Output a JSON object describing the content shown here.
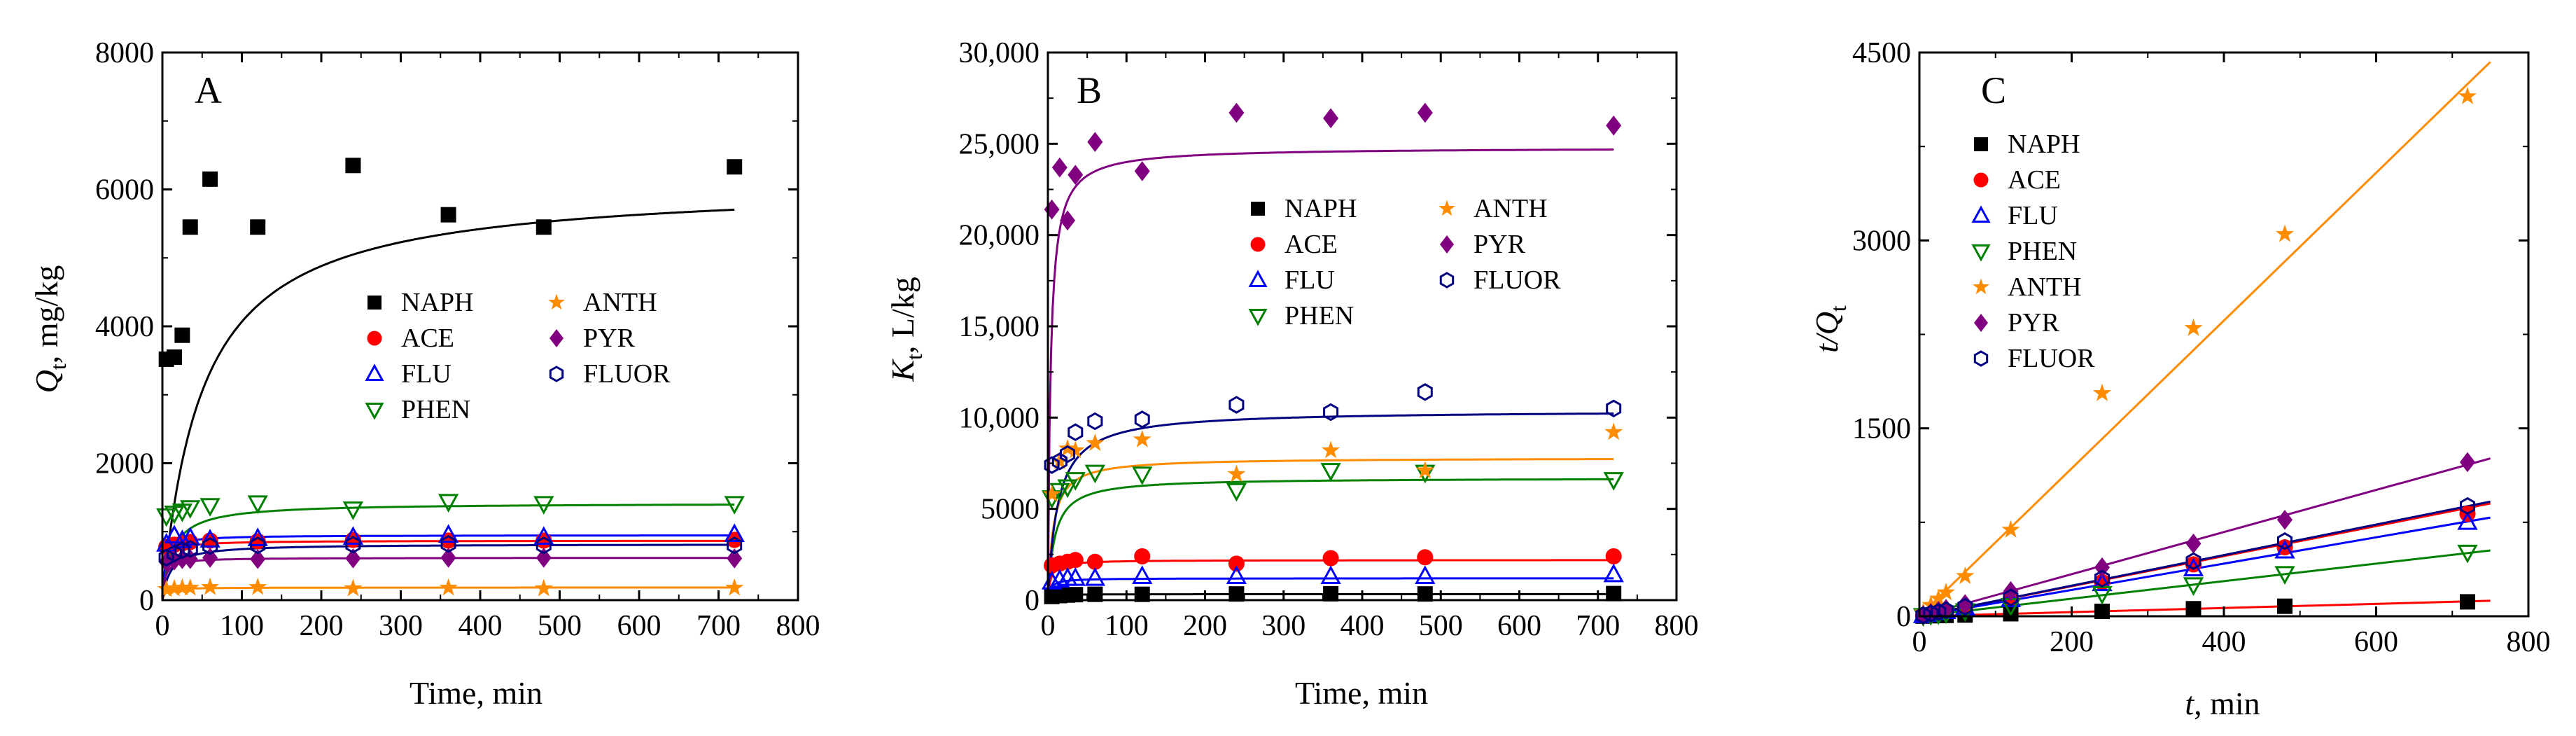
{
  "chart_data": [
    {
      "type": "scatter",
      "panel_label": "A",
      "xlabel": "Time, min",
      "ylabel_main": "Q",
      "ylabel_sub": "t",
      "ylabel_rest": ", mg/kg",
      "xlim": [
        0,
        800
      ],
      "ylim": [
        0,
        8000
      ],
      "xticks": [
        "0",
        "100",
        "200",
        "300",
        "400",
        "500",
        "600",
        "700",
        "800"
      ],
      "yticks": [
        "0",
        "2000",
        "4000",
        "6000",
        "8000"
      ],
      "legend_columns": [
        [
          "NAPH",
          "ACE",
          "FLU",
          "PHEN"
        ],
        [
          "ANTH",
          "PYR",
          "FLUOR"
        ]
      ],
      "series": [
        {
          "name": "NAPH",
          "marker": "square",
          "color": "#000000",
          "fit": 6100,
          "fitk": 0.02,
          "x": [
            5,
            15,
            25,
            35,
            60,
            120,
            240,
            360,
            480,
            720
          ],
          "y": [
            3520,
            3550,
            3870,
            5450,
            6150,
            5450,
            6350,
            5630,
            5450,
            6330
          ]
        },
        {
          "name": "ACE",
          "marker": "circle",
          "color": "#ff0000",
          "fit": 870,
          "fitk": 0.3,
          "x": [
            5,
            15,
            25,
            35,
            60,
            120,
            240,
            360,
            480,
            720
          ],
          "y": [
            780,
            810,
            830,
            850,
            870,
            860,
            880,
            870,
            870,
            880
          ]
        },
        {
          "name": "FLU",
          "marker": "triangle-up",
          "color": "#0000ff",
          "fit": 950,
          "fitk": 0.3,
          "x": [
            5,
            15,
            25,
            35,
            60,
            120,
            240,
            360,
            480,
            720
          ],
          "y": [
            820,
            940,
            870,
            910,
            880,
            900,
            920,
            950,
            920,
            960
          ]
        },
        {
          "name": "PHEN",
          "marker": "triangle-down",
          "color": "#008000",
          "fit": 1420,
          "fitk": 0.08,
          "x": [
            5,
            15,
            25,
            35,
            60,
            120,
            240,
            360,
            480,
            720
          ],
          "y": [
            1230,
            1270,
            1300,
            1350,
            1380,
            1420,
            1330,
            1440,
            1410,
            1410
          ]
        },
        {
          "name": "ANTH",
          "marker": "star",
          "color": "#ff8c00",
          "fit": 185,
          "fitk": 0.3,
          "x": [
            5,
            15,
            25,
            35,
            60,
            120,
            240,
            360,
            480,
            720
          ],
          "y": [
            160,
            170,
            180,
            180,
            190,
            190,
            170,
            180,
            170,
            180
          ]
        },
        {
          "name": "PYR",
          "marker": "diamond",
          "color": "#800080",
          "fit": 620,
          "fitk": 0.3,
          "x": [
            5,
            15,
            25,
            35,
            60,
            120,
            240,
            360,
            480,
            720
          ],
          "y": [
            560,
            580,
            600,
            600,
            620,
            600,
            610,
            620,
            620,
            610
          ]
        },
        {
          "name": "FLUOR",
          "marker": "hexagon",
          "color": "#000080",
          "fit": 820,
          "fitk": 0.1,
          "x": [
            5,
            15,
            25,
            35,
            60,
            120,
            240,
            360,
            480,
            720
          ],
          "y": [
            620,
            680,
            730,
            750,
            790,
            800,
            810,
            820,
            800,
            800
          ]
        }
      ]
    },
    {
      "type": "scatter",
      "panel_label": "B",
      "xlabel": "Time, min",
      "ylabel_main": "K",
      "ylabel_sub": "t",
      "ylabel_rest": ", L/kg",
      "xlim": [
        0,
        800
      ],
      "ylim": [
        0,
        30000
      ],
      "xticks": [
        "0",
        "100",
        "200",
        "300",
        "400",
        "500",
        "600",
        "700",
        "800"
      ],
      "yticks": [
        "0",
        "5000",
        "10,000",
        "15,000",
        "20,000",
        "25,000",
        "30,000"
      ],
      "legend_columns": [
        [
          "NAPH",
          "ACE",
          "FLU",
          "PHEN"
        ],
        [
          "ANTH",
          "PYR",
          "FLUOR"
        ]
      ],
      "series": [
        {
          "name": "NAPH",
          "marker": "square",
          "color": "#000000",
          "fit": 330,
          "fitk": 0.3,
          "x": [
            5,
            15,
            25,
            35,
            60,
            120,
            240,
            360,
            480,
            720
          ],
          "y": [
            200,
            250,
            280,
            300,
            320,
            320,
            340,
            350,
            340,
            360
          ]
        },
        {
          "name": "ACE",
          "marker": "circle",
          "color": "#ff0000",
          "fit": 2200,
          "fitk": 0.3,
          "x": [
            5,
            15,
            25,
            35,
            60,
            120,
            240,
            360,
            480,
            720
          ],
          "y": [
            1900,
            2000,
            2100,
            2200,
            2100,
            2400,
            2000,
            2300,
            2350,
            2400
          ]
        },
        {
          "name": "FLU",
          "marker": "triangle-up",
          "color": "#0000ff",
          "fit": 1200,
          "fitk": 0.3,
          "x": [
            5,
            15,
            25,
            35,
            60,
            120,
            240,
            360,
            480,
            720
          ],
          "y": [
            1000,
            1100,
            1200,
            1200,
            1200,
            1300,
            1300,
            1300,
            1300,
            1400
          ]
        },
        {
          "name": "PHEN",
          "marker": "triangle-down",
          "color": "#008000",
          "fit": 6700,
          "fitk": 0.12,
          "x": [
            5,
            15,
            25,
            35,
            60,
            120,
            240,
            360,
            480,
            720
          ],
          "y": [
            5600,
            6000,
            6200,
            6600,
            7000,
            6900,
            6000,
            7100,
            7000,
            6600
          ]
        },
        {
          "name": "ANTH",
          "marker": "star",
          "color": "#ff8c00",
          "fit": 7800,
          "fitk": 0.15,
          "x": [
            5,
            15,
            25,
            35,
            60,
            120,
            240,
            360,
            480,
            720
          ],
          "y": [
            5800,
            7600,
            8300,
            8200,
            8600,
            8800,
            6900,
            8200,
            7100,
            9200
          ]
        },
        {
          "name": "PYR",
          "marker": "diamond",
          "color": "#800080",
          "fit": 24800,
          "fitk": 0.3,
          "x": [
            5,
            15,
            25,
            35,
            60,
            120,
            240,
            360,
            480,
            720
          ],
          "y": [
            21400,
            23700,
            20800,
            23300,
            25100,
            23500,
            26700,
            26400,
            26700,
            26000
          ]
        },
        {
          "name": "FLUOR",
          "marker": "hexagon",
          "color": "#000080",
          "fit": 10400,
          "fitk": 0.08,
          "x": [
            5,
            15,
            25,
            35,
            60,
            120,
            240,
            360,
            480,
            720
          ],
          "y": [
            7400,
            7600,
            8000,
            9200,
            9800,
            9900,
            10700,
            10300,
            11400,
            10500
          ]
        }
      ]
    },
    {
      "type": "scatter",
      "panel_label": "C",
      "xlabel_main": "t",
      "xlabel_rest": ", min",
      "ylabel_main": "t/Q",
      "ylabel_sub": "t",
      "xlim": [
        0,
        800
      ],
      "ylim": [
        0,
        4500
      ],
      "xticks": [
        "0",
        "200",
        "400",
        "600",
        "800"
      ],
      "yticks": [
        "0",
        "1500",
        "3000",
        "4500"
      ],
      "legend_columns": [
        [
          "NAPH",
          "ACE",
          "FLU",
          "PHEN",
          "ANTH",
          "PYR",
          "FLUOR"
        ]
      ],
      "series": [
        {
          "name": "NAPH",
          "marker": "square",
          "color": "#000000",
          "slope": 0.165,
          "line_color": "#ff0000",
          "x": [
            5,
            15,
            25,
            35,
            60,
            120,
            240,
            360,
            480,
            720
          ],
          "y": [
            1,
            4,
            6,
            7,
            10,
            20,
            39,
            60,
            80,
            115
          ]
        },
        {
          "name": "ACE",
          "marker": "circle",
          "color": "#ff0000",
          "slope": 1.2,
          "line_color": "#ff0000",
          "x": [
            5,
            15,
            25,
            35,
            60,
            120,
            240,
            360,
            480,
            720
          ],
          "y": [
            6,
            18,
            30,
            41,
            69,
            140,
            273,
            414,
            550,
            818
          ]
        },
        {
          "name": "FLU",
          "marker": "triangle-up",
          "color": "#0000ff",
          "slope": 1.05,
          "line_color": "#0000ff",
          "x": [
            5,
            15,
            25,
            35,
            60,
            120,
            240,
            360,
            480,
            720
          ],
          "y": [
            6,
            16,
            29,
            38,
            68,
            133,
            261,
            379,
            522,
            750
          ]
        },
        {
          "name": "PHEN",
          "marker": "triangle-down",
          "color": "#008000",
          "slope": 0.7,
          "line_color": "#008000",
          "x": [
            5,
            15,
            25,
            35,
            60,
            120,
            240,
            360,
            480,
            720
          ],
          "y": [
            4,
            12,
            19,
            26,
            43,
            85,
            180,
            250,
            340,
            510
          ]
        },
        {
          "name": "ANTH",
          "marker": "star",
          "color": "#ff8c00",
          "slope": 5.9,
          "line_color": "#ff8c00",
          "x": [
            5,
            15,
            25,
            35,
            60,
            120,
            240,
            360,
            480,
            720
          ],
          "y": [
            30,
            90,
            140,
            190,
            320,
            690,
            1780,
            2300,
            3050,
            4150
          ]
        },
        {
          "name": "PYR",
          "marker": "diamond",
          "color": "#800080",
          "slope": 1.68,
          "line_color": "#800080",
          "x": [
            5,
            15,
            25,
            35,
            60,
            120,
            240,
            360,
            480,
            720
          ],
          "y": [
            9,
            26,
            42,
            58,
            97,
            200,
            390,
            580,
            770,
            1230
          ]
        },
        {
          "name": "FLUOR",
          "marker": "hexagon",
          "color": "#000080",
          "slope": 1.22,
          "line_color": "#000080",
          "x": [
            5,
            15,
            25,
            35,
            60,
            120,
            240,
            360,
            480,
            720
          ],
          "y": [
            8,
            22,
            34,
            47,
            76,
            150,
            300,
            440,
            600,
            880
          ]
        }
      ]
    }
  ]
}
